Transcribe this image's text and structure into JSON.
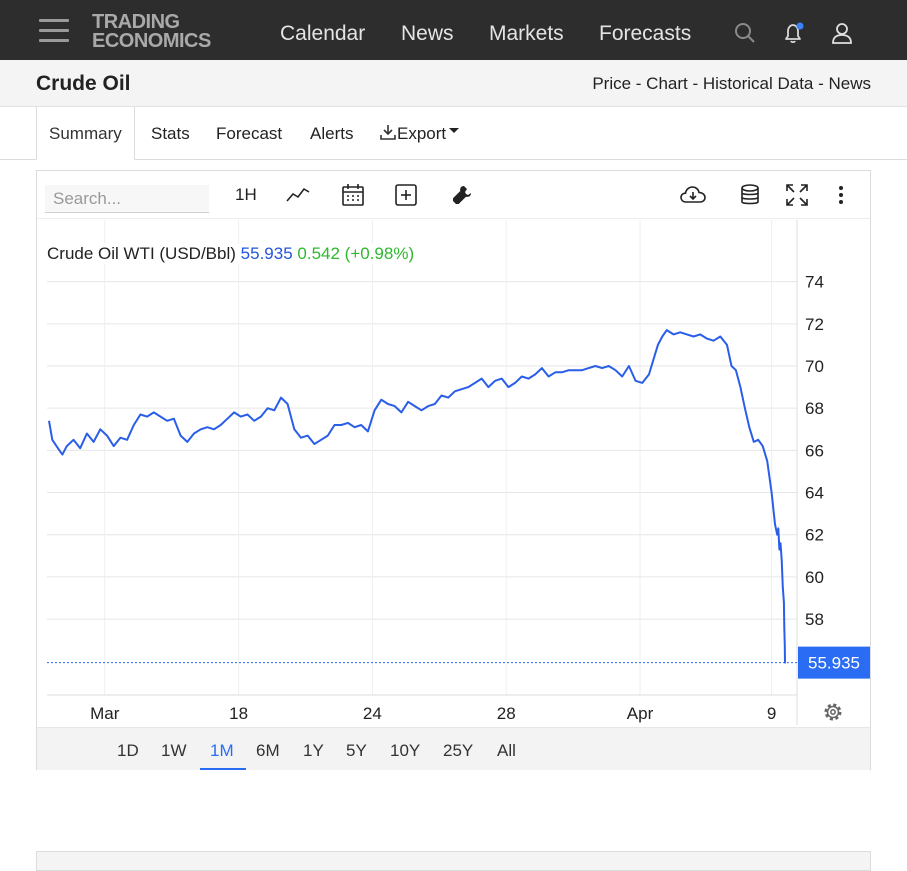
{
  "nav": {
    "logo_line1": "TRADING",
    "logo_line2": "ECONOMICS",
    "items": [
      {
        "label": "Calendar"
      },
      {
        "label": "News"
      },
      {
        "label": "Markets"
      },
      {
        "label": "Forecasts"
      }
    ],
    "icons": [
      "menu-icon",
      "search-icon",
      "notification-bell-icon",
      "user-icon"
    ],
    "notification_dot_color": "#3b82f6"
  },
  "header": {
    "title": "Crude Oil",
    "links": "Price - Chart - Historical Data - News"
  },
  "tabs": [
    {
      "label": "Summary",
      "active": true
    },
    {
      "label": "Stats"
    },
    {
      "label": "Forecast"
    },
    {
      "label": "Alerts"
    },
    {
      "label": "Export"
    }
  ],
  "toolbar": {
    "search_placeholder": "Search...",
    "interval": "1H",
    "icons": [
      "line-chart-icon",
      "calendar-icon",
      "add-indicator-icon",
      "wrench-icon",
      "download-cloud-icon",
      "database-icon",
      "fullscreen-icon",
      "more-vertical-icon"
    ]
  },
  "legend": {
    "name": "Crude Oil WTI (USD/Bbl)",
    "price": "55.935",
    "change": "0.542 (+0.98%)"
  },
  "ranges": [
    "1D",
    "1W",
    "1M",
    "6M",
    "1Y",
    "5Y",
    "10Y",
    "25Y",
    "All"
  ],
  "active_range": "1M",
  "colors": {
    "series": "#2a5ee8",
    "accent": "#2a6df4",
    "positive": "#2eb82e",
    "last_price_badge": "#2a6df4"
  },
  "chart_data": {
    "type": "line",
    "series_name": "Crude Oil WTI (USD/Bbl)",
    "last_value": 55.935,
    "ylim": [
      54.4,
      75.5
    ],
    "y_ticks": [
      58,
      60,
      62,
      64,
      66,
      68,
      70,
      72,
      74
    ],
    "x_ticks": [
      {
        "t": 0.4,
        "label": "Mar"
      },
      {
        "t": 6.4,
        "label": "18"
      },
      {
        "t": 12.4,
        "label": "24"
      },
      {
        "t": 18.4,
        "label": "28"
      },
      {
        "t": 24.4,
        "label": "Apr"
      },
      {
        "t": 30.3,
        "label": "9"
      }
    ],
    "xlim": [
      -2.1,
      30.9
    ],
    "points": [
      [
        -2.1,
        67.4
      ],
      [
        -1.95,
        66.5
      ],
      [
        -1.7,
        66.1
      ],
      [
        -1.5,
        65.8
      ],
      [
        -1.3,
        66.2
      ],
      [
        -1.0,
        66.5
      ],
      [
        -0.7,
        66.1
      ],
      [
        -0.4,
        66.8
      ],
      [
        -0.1,
        66.4
      ],
      [
        0.2,
        67.0
      ],
      [
        0.5,
        66.7
      ],
      [
        0.8,
        66.2
      ],
      [
        1.1,
        66.6
      ],
      [
        1.4,
        66.5
      ],
      [
        1.7,
        67.2
      ],
      [
        2.0,
        67.7
      ],
      [
        2.3,
        67.6
      ],
      [
        2.6,
        67.8
      ],
      [
        2.9,
        67.6
      ],
      [
        3.2,
        67.4
      ],
      [
        3.5,
        67.5
      ],
      [
        3.8,
        66.7
      ],
      [
        4.1,
        66.4
      ],
      [
        4.4,
        66.8
      ],
      [
        4.7,
        67.0
      ],
      [
        5.0,
        67.1
      ],
      [
        5.3,
        67.0
      ],
      [
        5.6,
        67.2
      ],
      [
        5.9,
        67.5
      ],
      [
        6.2,
        67.8
      ],
      [
        6.5,
        67.6
      ],
      [
        6.8,
        67.7
      ],
      [
        7.1,
        67.4
      ],
      [
        7.4,
        67.6
      ],
      [
        7.7,
        68.0
      ],
      [
        8.0,
        67.9
      ],
      [
        8.3,
        68.5
      ],
      [
        8.6,
        68.2
      ],
      [
        8.9,
        67.0
      ],
      [
        9.2,
        66.6
      ],
      [
        9.5,
        66.7
      ],
      [
        9.8,
        66.3
      ],
      [
        10.1,
        66.5
      ],
      [
        10.4,
        66.7
      ],
      [
        10.7,
        67.2
      ],
      [
        11.0,
        67.2
      ],
      [
        11.3,
        67.3
      ],
      [
        11.6,
        67.1
      ],
      [
        11.9,
        67.2
      ],
      [
        12.2,
        66.9
      ],
      [
        12.5,
        67.9
      ],
      [
        12.8,
        68.4
      ],
      [
        13.1,
        68.2
      ],
      [
        13.4,
        68.1
      ],
      [
        13.7,
        67.8
      ],
      [
        14.0,
        68.3
      ],
      [
        14.3,
        68.1
      ],
      [
        14.6,
        67.9
      ],
      [
        14.9,
        68.1
      ],
      [
        15.2,
        68.2
      ],
      [
        15.5,
        68.6
      ],
      [
        15.8,
        68.5
      ],
      [
        16.1,
        68.8
      ],
      [
        16.4,
        68.9
      ],
      [
        16.7,
        69.0
      ],
      [
        17.0,
        69.2
      ],
      [
        17.3,
        69.4
      ],
      [
        17.6,
        69.0
      ],
      [
        17.9,
        69.3
      ],
      [
        18.2,
        69.4
      ],
      [
        18.5,
        69.0
      ],
      [
        18.8,
        69.2
      ],
      [
        19.1,
        69.5
      ],
      [
        19.4,
        69.4
      ],
      [
        19.7,
        69.6
      ],
      [
        20.0,
        69.9
      ],
      [
        20.3,
        69.5
      ],
      [
        20.6,
        69.7
      ],
      [
        20.9,
        69.7
      ],
      [
        21.2,
        69.8
      ],
      [
        21.5,
        69.8
      ],
      [
        21.8,
        69.8
      ],
      [
        22.1,
        69.9
      ],
      [
        22.4,
        70.0
      ],
      [
        22.7,
        69.9
      ],
      [
        23.0,
        70.0
      ],
      [
        23.3,
        69.8
      ],
      [
        23.6,
        69.5
      ],
      [
        23.9,
        70.0
      ],
      [
        24.2,
        69.3
      ],
      [
        24.5,
        69.2
      ],
      [
        24.8,
        69.6
      ],
      [
        25.0,
        70.3
      ],
      [
        25.2,
        71.0
      ],
      [
        25.4,
        71.4
      ],
      [
        25.6,
        71.7
      ],
      [
        25.9,
        71.5
      ],
      [
        26.2,
        71.6
      ],
      [
        26.5,
        71.5
      ],
      [
        26.8,
        71.4
      ],
      [
        27.1,
        71.5
      ],
      [
        27.4,
        71.3
      ],
      [
        27.7,
        71.2
      ],
      [
        28.0,
        71.4
      ],
      [
        28.3,
        71.0
      ],
      [
        28.5,
        70.0
      ],
      [
        28.7,
        69.8
      ],
      [
        28.9,
        69.0
      ],
      [
        29.1,
        68.0
      ],
      [
        29.3,
        67.1
      ],
      [
        29.5,
        66.4
      ],
      [
        29.7,
        66.5
      ],
      [
        29.9,
        66.2
      ],
      [
        30.1,
        65.5
      ],
      [
        30.3,
        64.0
      ],
      [
        30.45,
        62.5
      ],
      [
        30.55,
        62.0
      ],
      [
        30.6,
        62.3
      ],
      [
        30.65,
        61.3
      ],
      [
        30.7,
        61.6
      ],
      [
        30.75,
        60.8
      ],
      [
        30.8,
        59.5
      ],
      [
        30.85,
        58.8
      ],
      [
        30.87,
        57.6
      ],
      [
        30.89,
        56.7
      ],
      [
        30.9,
        55.9
      ]
    ]
  }
}
